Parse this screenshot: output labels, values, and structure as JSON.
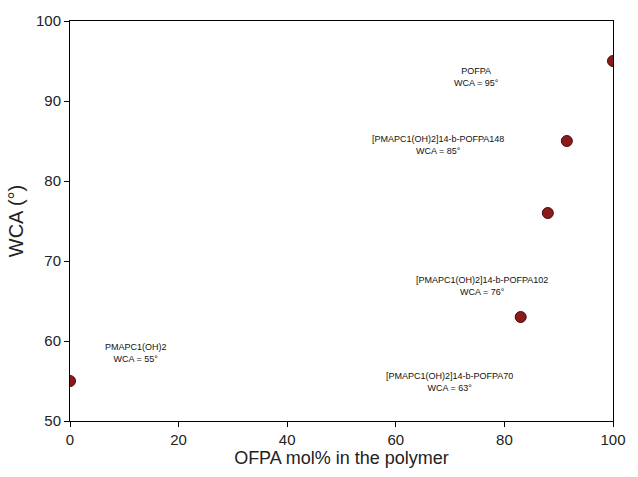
{
  "chart_data": {
    "type": "scatter",
    "x_label": "OFPA mol% in the polymer",
    "y_label": "WCA (°)",
    "x": [
      0,
      83,
      88,
      91.5,
      100
    ],
    "values": [
      55,
      63,
      76,
      85,
      95
    ],
    "point_labels": [
      "PMAPC1(OH)2\nWCA = 55°",
      "[PMAPC1(OH)2]14-b-POFPA70\nWCA = 63°",
      "[PMAPC1(OH)2]14-b-POFPA102\nWCA = 76°",
      "[PMAPC1(OH)2]14-b-POFPA148\nWCA = 85°",
      "POFPA\nWCA = 95°"
    ],
    "color": "#8b1a1a",
    "marker": "circle",
    "xlim": [
      0,
      100
    ],
    "xticks": [
      0,
      20,
      40,
      60,
      80,
      100
    ],
    "ylim": [
      50,
      100
    ],
    "yticks": [
      50,
      60,
      70,
      80,
      90,
      100
    ],
    "grid": false
  }
}
